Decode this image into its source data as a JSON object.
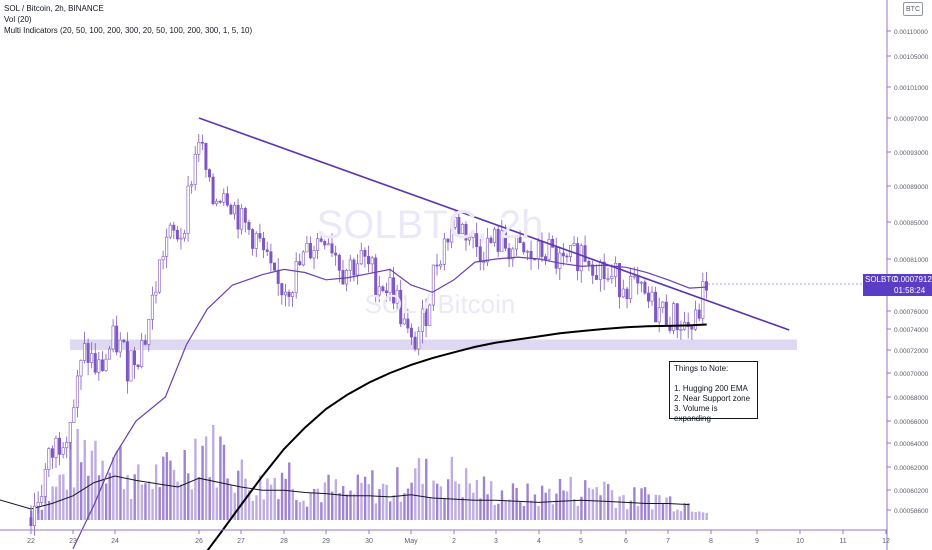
{
  "legend": {
    "line1": "SOL / Bitcoin, 2h, BINANCE",
    "line2": "Vol (20)",
    "line3": "Multi Indicators (20, 50, 100, 200, 300, 20, 50, 100, 200, 300, 1, 5, 10)"
  },
  "watermark": {
    "symbol": "SOLBTC, 2h",
    "name": "SOL / Bitcoin"
  },
  "annotation": {
    "title": "Things to Note:",
    "items": [
      "1. Hugging 200 EMA",
      "2. Near Support zone",
      "3. Volume is expanding"
    ]
  },
  "price_label": {
    "symbol": "SOLBTC",
    "value": "0.00079128",
    "countdown": "01:58:24"
  },
  "currency": "BTC",
  "colors": {
    "candle": "#7e57c2",
    "volume": "#9575cd",
    "ema_purple": "#6a3fb5",
    "ema_black": "#000000",
    "support_zone": "#d9d1f0",
    "trendline": "#5e35b1",
    "axis_text": "#5d606b"
  },
  "chart_data": {
    "type": "candlestick",
    "title": "SOL / Bitcoin, 2h, BINANCE",
    "x_ticks": [
      "22",
      "23",
      "24",
      "26",
      "27",
      "28",
      "29",
      "30",
      "May",
      "2",
      "3",
      "4",
      "5",
      "6",
      "7",
      "8",
      "9",
      "10",
      "11",
      "12"
    ],
    "y_ticks": [
      "0.00110000",
      "0.00105000",
      "0.00101000",
      "0.00097000",
      "0.00093000",
      "0.00089000",
      "0.00085000",
      "0.00081000",
      "0.00076000",
      "0.00074000",
      "0.00072000",
      "0.00070000",
      "0.00068000",
      "0.00066000",
      "0.00064000",
      "0.00062000",
      "0.00060200",
      "0.00058600"
    ],
    "last_price": 0.00079128,
    "support_zone": [
      0.00072,
      0.00073
    ],
    "price_series": {
      "x": [
        22.0,
        22.5,
        23.0,
        23.3,
        23.6,
        24.0,
        24.3,
        24.7,
        25.2,
        25.6,
        26.0,
        26.3,
        26.6,
        27.0,
        27.4,
        27.8,
        28.2,
        28.6,
        29.0,
        29.4,
        29.8,
        30.2,
        30.6,
        31.0,
        31.3,
        31.6,
        32.0,
        32.3,
        32.6,
        33.0,
        33.4,
        33.8,
        34.2,
        34.6,
        35.0,
        35.3,
        35.6,
        36.0,
        36.4,
        36.8,
        37.2,
        37.6,
        37.9
      ],
      "values": [
        0.00058,
        0.00063,
        0.00067,
        0.00072,
        0.0007,
        0.00073,
        0.00071,
        0.00073,
        0.00083,
        0.00084,
        0.00095,
        0.00087,
        0.00089,
        0.00085,
        0.00083,
        0.00078,
        0.00079,
        0.00082,
        0.00084,
        0.0008,
        0.00081,
        0.00079,
        0.00078,
        0.00072,
        0.00075,
        0.00081,
        0.00085,
        0.00084,
        0.00082,
        0.00083,
        0.00082,
        0.00081,
        0.00082,
        0.0008,
        0.00082,
        0.00081,
        0.00079,
        0.00079,
        0.00077,
        0.00076,
        0.00075,
        0.00074,
        0.00079
      ]
    },
    "ema_purple": {
      "x": [
        23.0,
        23.5,
        24.0,
        24.5,
        25.2,
        25.7,
        26.2,
        26.8,
        27.5,
        28.0,
        28.5,
        29.0,
        29.5,
        30.0,
        30.5,
        31.0,
        31.5,
        32.0,
        32.5,
        33.0,
        33.5,
        34.0,
        34.5,
        35.0,
        35.5,
        36.0,
        36.5,
        37.0,
        37.5,
        37.9
      ],
      "values": [
        0.000555,
        0.00059,
        0.00063,
        0.00066,
        0.00068,
        0.000725,
        0.000762,
        0.000785,
        0.000795,
        0.0008,
        0.000797,
        0.00079,
        0.000792,
        0.000796,
        0.0008,
        0.000785,
        0.000778,
        0.00079,
        0.000807,
        0.00081,
        0.000812,
        0.00081,
        0.000806,
        0.000803,
        0.000804,
        0.000802,
        0.000797,
        0.00079,
        0.000782,
        0.000783
      ]
    },
    "ema_black": {
      "x": [
        26.0,
        26.5,
        27.0,
        27.5,
        28.0,
        28.5,
        29.0,
        29.5,
        30.0,
        30.5,
        31.0,
        31.5,
        32.0,
        32.5,
        33.0,
        33.5,
        34.0,
        34.5,
        35.0,
        35.5,
        36.0,
        36.5,
        37.0,
        37.5,
        37.9
      ],
      "values": [
        0.0005445,
        0.000567,
        0.00059,
        0.000613,
        0.000635,
        0.000654,
        0.00067,
        0.000682,
        0.000692,
        0.0007,
        0.000707,
        0.000713,
        0.000718,
        0.000723,
        0.000727,
        0.00073,
        0.000733,
        0.000736,
        0.000738,
        0.00074,
        0.000742,
        0.000743,
        0.0007435,
        0.000744,
        0.000745
      ]
    },
    "trendline": {
      "x": [
        26.0,
        39.75
      ],
      "values": [
        0.00097,
        0.000739
      ]
    },
    "volume": {
      "x": [
        22.0,
        22.5,
        23.0,
        23.5,
        24.0,
        24.5,
        25.0,
        25.5,
        26.0,
        26.5,
        27.0,
        27.5,
        28.0,
        28.5,
        29.0,
        29.5,
        30.0,
        30.5,
        31.0,
        31.5,
        32.0,
        32.5,
        33.0,
        33.5,
        34.0,
        34.5,
        35.0,
        35.5,
        36.0,
        36.5,
        37.0,
        37.5
      ],
      "values": [
        12,
        35,
        70,
        95,
        80,
        45,
        55,
        60,
        100,
        85,
        55,
        40,
        65,
        35,
        40,
        30,
        45,
        35,
        60,
        50,
        55,
        40,
        35,
        30,
        30,
        40,
        35,
        45,
        25,
        30,
        25,
        20
      ],
      "ma": [
        10,
        15,
        22,
        34,
        40,
        36,
        33,
        30,
        38,
        34,
        30,
        27,
        27,
        25,
        24,
        22,
        22,
        21,
        23,
        20,
        19,
        18,
        18,
        17,
        16,
        17,
        18,
        17,
        16,
        15,
        15,
        14
      ]
    }
  }
}
